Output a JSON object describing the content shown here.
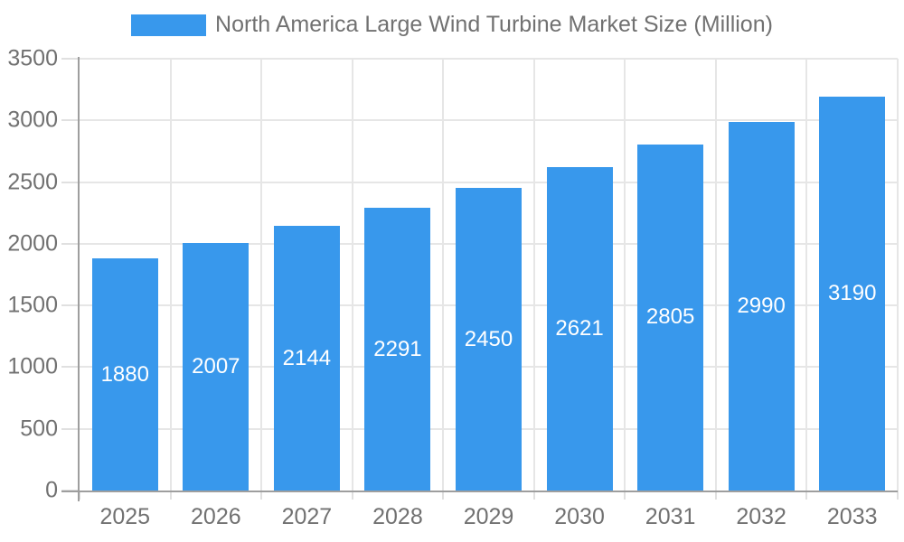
{
  "legend": {
    "label": "North America Large Wind Turbine Market Size (Million)"
  },
  "chart_data": {
    "type": "bar",
    "title": "North America Large Wind Turbine Market Size (Million)",
    "categories": [
      "2025",
      "2026",
      "2027",
      "2028",
      "2029",
      "2030",
      "2031",
      "2032",
      "2033"
    ],
    "values": [
      1880,
      2007,
      2144,
      2291,
      2450,
      2621,
      2805,
      2990,
      3190
    ],
    "series": [
      {
        "name": "North America Large Wind Turbine Market Size (Million)",
        "values": [
          1880,
          2007,
          2144,
          2291,
          2450,
          2621,
          2805,
          2990,
          3190
        ]
      }
    ],
    "xlabel": "",
    "ylabel": "",
    "ylim": [
      0,
      3500
    ],
    "yticks": [
      0,
      500,
      1000,
      1500,
      2000,
      2500,
      3000,
      3500
    ],
    "grid": true,
    "legend_position": "top",
    "value_labels": "inside-center",
    "colors": {
      "bar": "#3898EC",
      "value_label": "#FFFFFF",
      "axis": "#9E9E9E",
      "grid": "#E6E6E6",
      "tick": "#E0E0E0",
      "text": "#717171"
    }
  }
}
